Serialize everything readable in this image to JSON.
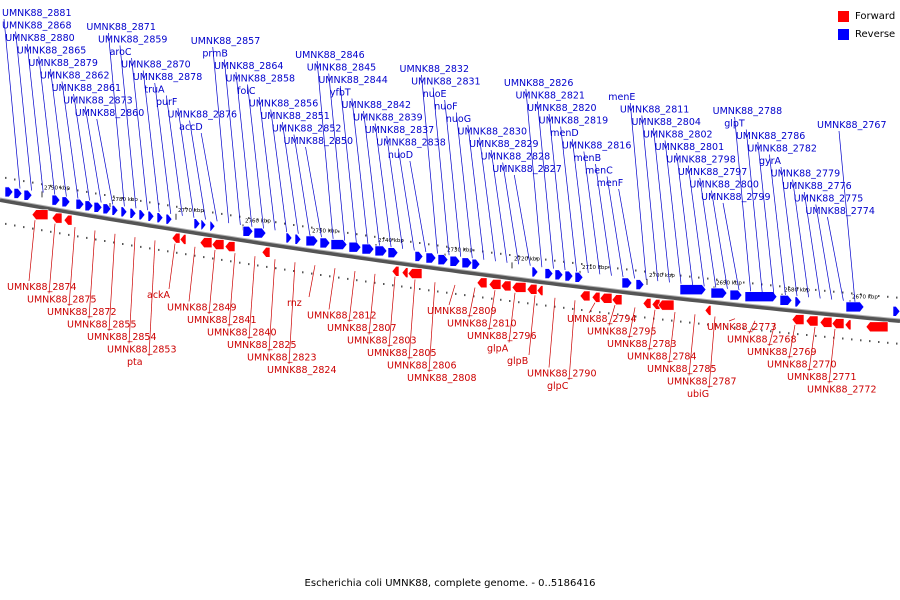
{
  "caption": "Escherichia coli UMNK88, complete genome. - 0..5186416",
  "legend": {
    "forward": {
      "label": "Forward",
      "color": "#ff0000"
    },
    "reverse": {
      "label": "Reverse",
      "color": "#0000ff"
    }
  },
  "colors": {
    "forward_label": "#cc0000",
    "reverse_label": "#0000cc",
    "backbone": "#555555"
  },
  "scale_labels": [
    "2790 kbp",
    "2780 kbp",
    "2770 kbp",
    "2760 kbp",
    "2750 kbp",
    "2740 kbp",
    "2730 kbp",
    "2720 kbp",
    "2710 kbp",
    "2700 kbp",
    "2690 kbp",
    "2680 kbp",
    "2670 kbp"
  ],
  "forward_labels": [
    "UMNK88_2874",
    "UMNK88_2875",
    "UMNK88_2872",
    "UMNK88_2855",
    "UMNK88_2854",
    "UMNK88_2853",
    "pta",
    "ackA",
    "UMNK88_2849",
    "UMNK88_2841",
    "UMNK88_2840",
    "UMNK88_2825",
    "UMNK88_2823",
    "UMNK88_2824",
    "rnz",
    "UMNK88_2812",
    "UMNK88_2807",
    "UMNK88_2803",
    "UMNK88_2805",
    "UMNK88_2806",
    "UMNK88_2808",
    "UMNK88_2809",
    "UMNK88_2810",
    "UMNK88_2796",
    "glpA",
    "glpB",
    "UMNK88_2790",
    "glpC",
    "UMNK88_2794",
    "UMNK88_2795",
    "UMNK88_2783",
    "UMNK88_2784",
    "UMNK88_2785",
    "UMNK88_2787",
    "ubiG",
    "UMNK88_2773",
    "UMNK88_2768",
    "UMNK88_2769",
    "UMNK88_2770",
    "UMNK88_2771",
    "UMNK88_2772"
  ],
  "reverse_labels": [
    "UMNK88_2881",
    "UMNK88_2868",
    "UMNK88_2880",
    "UMNK88_2865",
    "UMNK88_2879",
    "UMNK88_2862",
    "UMNK88_2861",
    "UMNK88_2873",
    "UMNK88_2860",
    "UMNK88_2871",
    "UMNK88_2859",
    "aroC",
    "UMNK88_2870",
    "UMNK88_2878",
    "truA",
    "purF",
    "UMNK88_2876",
    "accD",
    "UMNK88_2857",
    "prmB",
    "UMNK88_2864",
    "UMNK88_2858",
    "folC",
    "UMNK88_2856",
    "UMNK88_2851",
    "UMNK88_2852",
    "UMNK88_2850",
    "UMNK88_2846",
    "UMNK88_2845",
    "UMNK88_2844",
    "yfbT",
    "UMNK88_2842",
    "UMNK88_2839",
    "UMNK88_2837",
    "UMNK88_2838",
    "nuoD",
    "UMNK88_2832",
    "UMNK88_2831",
    "nuoE",
    "nuoF",
    "nuoG",
    "UMNK88_2830",
    "UMNK88_2829",
    "UMNK88_2828",
    "UMNK88_2827",
    "UMNK88_2826",
    "UMNK88_2821",
    "UMNK88_2820",
    "UMNK88_2819",
    "menD",
    "UMNK88_2816",
    "menB",
    "menC",
    "menF",
    "menE",
    "UMNK88_2811",
    "UMNK88_2804",
    "UMNK88_2802",
    "UMNK88_2801",
    "UMNK88_2798",
    "UMNK88_2797",
    "UMNK88_2800",
    "UMNK88_2799",
    "UMNK88_2788",
    "glpT",
    "UMNK88_2786",
    "UMNK88_2782",
    "gyrA",
    "UMNK88_2779",
    "UMNK88_2776",
    "UMNK88_2775",
    "UMNK88_2774",
    "UMNK88_2767"
  ]
}
